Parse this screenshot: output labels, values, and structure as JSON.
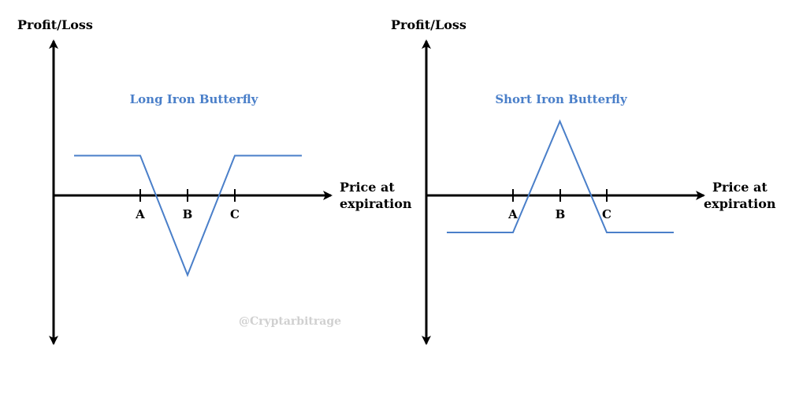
{
  "colors": {
    "payoff": "#4a7fc9",
    "axis": "#000000",
    "watermark": "#d0d0d0"
  },
  "watermark": "@Cryptarbitrage",
  "chart_data": [
    {
      "type": "line",
      "title": "Long Iron Butterfly",
      "ylabel": "Profit/Loss",
      "xlabel_lines": [
        "Price at",
        "expiration"
      ],
      "ticks": [
        "A",
        "B",
        "C"
      ],
      "payoff": {
        "points": [
          [
            -1,
            1
          ],
          [
            0,
            1
          ],
          [
            1,
            -2
          ],
          [
            2,
            1
          ],
          [
            3,
            1
          ]
        ]
      }
    },
    {
      "type": "line",
      "title": "Short Iron Butterfly",
      "ylabel": "Profit/Loss",
      "xlabel_lines": [
        "Price at",
        "expiration"
      ],
      "ticks": [
        "A",
        "B",
        "C"
      ],
      "payoff": {
        "points": [
          [
            -1,
            -1
          ],
          [
            0,
            -1
          ],
          [
            1,
            2
          ],
          [
            2,
            -1
          ],
          [
            3,
            -1
          ]
        ]
      }
    }
  ]
}
